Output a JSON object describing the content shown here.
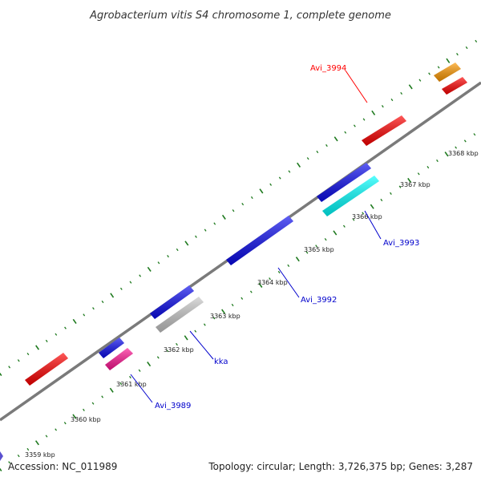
{
  "title": "Agrobacterium vitis S4 chromosome 1, complete genome",
  "footer": {
    "accession": "Accession: NC_011989",
    "summary": "Topology: circular; Length: 3,726,375 bp; Genes: 3,287"
  },
  "colors": {
    "backbone": "#7a7a7a",
    "tick": "#1f7a1f",
    "label_red": "#ff0000",
    "label_blue": "#0000cc",
    "gene_red": "#ff0000",
    "gene_blue": "#0a0aee",
    "gene_cyan": "#00ffff",
    "gene_gray": "#c8c8c8",
    "gene_magenta": "#ff1493",
    "gene_orange": "#ff9900",
    "gene_purple": "#5a4fcf"
  },
  "scale": {
    "ticks": [
      "3359 kbp",
      "3360 kbp",
      "3361 kbp",
      "3362 kbp",
      "3363 kbp",
      "3364 kbp",
      "3365 kbp",
      "3366 kbp",
      "3367 kbp",
      "3368 kbp"
    ]
  },
  "gene_labels": {
    "avi_3994": "Avi_3994",
    "avi_3993": "Avi_3993",
    "avi_3992": "Avi_3992",
    "kka": "kka",
    "avi_3989": "Avi_3989"
  }
}
